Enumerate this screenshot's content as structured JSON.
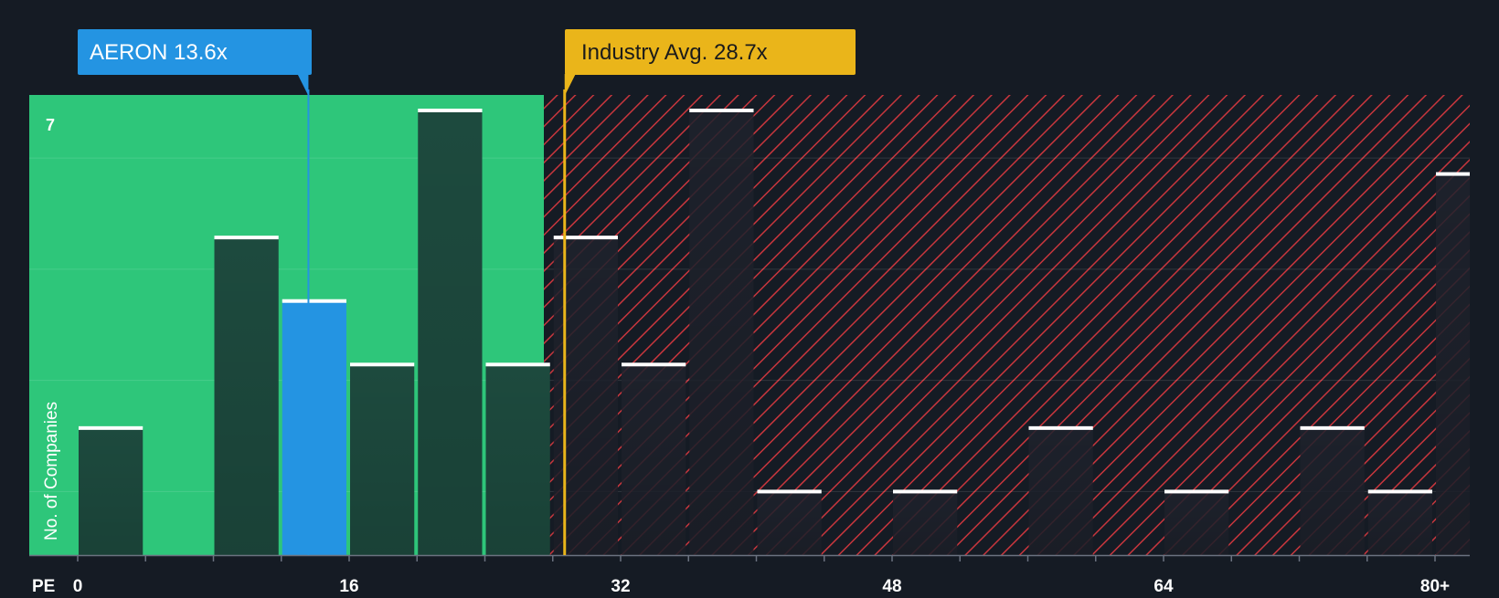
{
  "colors": {
    "background": "#151b24",
    "fair_zone": "#2ec67a",
    "over_zone_stripe": "#c8363d",
    "bar_dark": "#1d4a3e",
    "bar_over": "#1e222d",
    "highlight_bar": "#2494e2",
    "company_callout": "#2494e2",
    "industry_callout": "#eab51a",
    "bar_cap": "#ffffff",
    "axis_text": "#ffffff"
  },
  "company_callout": {
    "label": "AERON 13.6x",
    "value": 13.6
  },
  "industry_callout": {
    "label": "Industry Avg. 28.7x",
    "value": 28.7
  },
  "chart_data": {
    "type": "bar",
    "title": "",
    "xlabel": "PE",
    "ylabel": "No. of Companies",
    "x_ticks": [
      "0",
      "16",
      "32",
      "48",
      "64",
      "80+"
    ],
    "x_tick_values": [
      0,
      16,
      32,
      48,
      64,
      80
    ],
    "xlim": [
      0,
      80
    ],
    "y_tick_label": "7",
    "ylim": [
      0,
      7
    ],
    "grid": true,
    "bin_width": 4,
    "highlight_bin_start": 12,
    "bins": [
      {
        "start": 0,
        "count": 2
      },
      {
        "start": 8,
        "count": 5
      },
      {
        "start": 12,
        "count": 4
      },
      {
        "start": 16,
        "count": 3
      },
      {
        "start": 20,
        "count": 7
      },
      {
        "start": 24,
        "count": 3
      },
      {
        "start": 28,
        "count": 5
      },
      {
        "start": 32,
        "count": 3
      },
      {
        "start": 36,
        "count": 7
      },
      {
        "start": 40,
        "count": 1
      },
      {
        "start": 48,
        "count": 1
      },
      {
        "start": 56,
        "count": 2
      },
      {
        "start": 64,
        "count": 1
      },
      {
        "start": 72,
        "count": 2
      },
      {
        "start": 76,
        "count": 1
      },
      {
        "start": 80,
        "count": 6
      }
    ]
  }
}
